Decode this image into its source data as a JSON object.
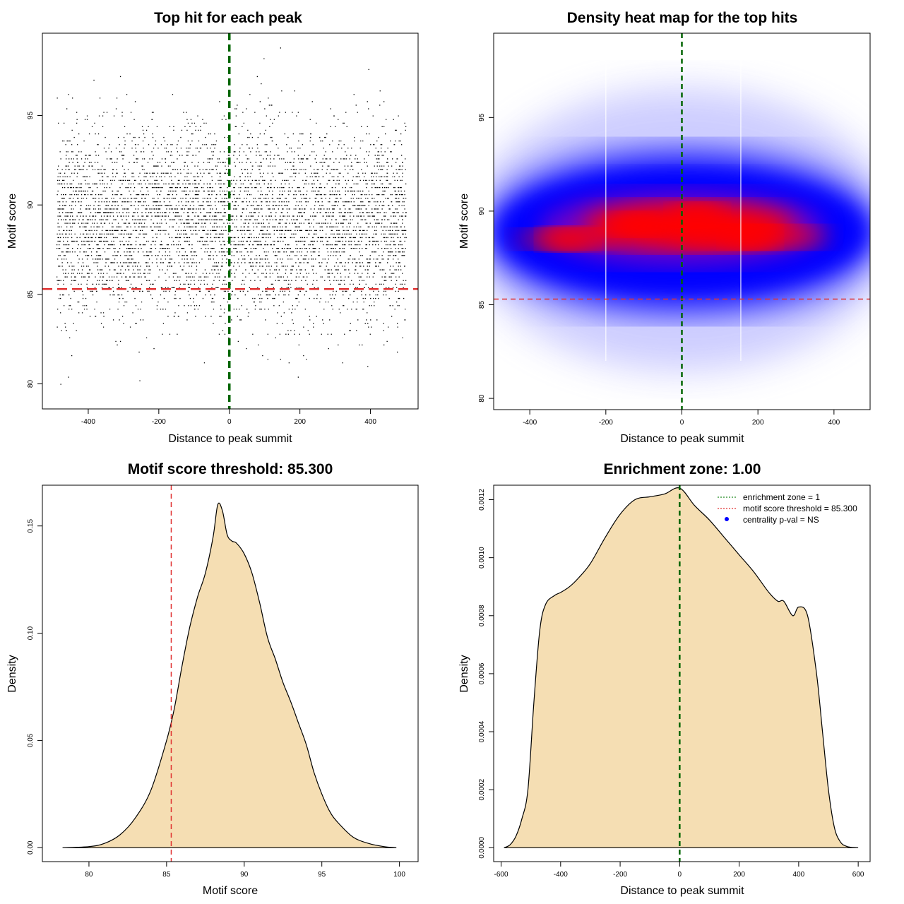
{
  "chart_data": [
    {
      "id": "scatter",
      "type": "scatter",
      "title": "Top hit for each peak",
      "xlabel": "Distance to peak summit",
      "ylabel": "Motif score",
      "xlim": [
        -530,
        535
      ],
      "ylim": [
        78.6,
        99.6
      ],
      "xticks": [
        -400,
        -200,
        0,
        200,
        400
      ],
      "yticks": [
        80,
        85,
        90,
        95
      ],
      "x_range_points": [
        -490,
        500
      ],
      "y_distribution": {
        "mean": 89.0,
        "sd": 2.6,
        "min": 79.4,
        "max": 98.8
      },
      "n_points": 9000,
      "vline": {
        "x": 0,
        "color": "#006400"
      },
      "hline": {
        "y": 85.3,
        "color": "#e03030"
      }
    },
    {
      "id": "heatmap",
      "type": "heatmap",
      "title": "Density heat map for the top hits",
      "xlabel": "Distance to peak summit",
      "ylabel": "Motif score",
      "xlim": [
        -495,
        495
      ],
      "ylim": [
        79.4,
        99.5
      ],
      "xticks": [
        -400,
        -200,
        0,
        200,
        400
      ],
      "yticks": [
        80,
        85,
        90,
        95
      ],
      "color_scale": [
        "#ffffff",
        "#0000ff",
        "#ff0000"
      ],
      "hotspots": [
        {
          "x": 40,
          "y": 89.8
        },
        {
          "x": -120,
          "y": 89.3
        },
        {
          "x": 180,
          "y": 88.6
        },
        {
          "x": -300,
          "y": 88.5
        }
      ],
      "white_vlines_x": [
        -200,
        155
      ],
      "vline": {
        "x": 0,
        "color": "#006400"
      },
      "hline": {
        "y": 85.3,
        "color": "#e03030"
      }
    },
    {
      "id": "score-density",
      "type": "area",
      "title": "Motif score threshold: 85.300",
      "xlabel": "Motif score",
      "ylabel": "Density",
      "xlim": [
        77.0,
        101.2
      ],
      "ylim": [
        -0.0065,
        0.169
      ],
      "xticks": [
        80,
        85,
        90,
        95,
        100
      ],
      "yticks": [
        0.0,
        0.05,
        0.1,
        0.15
      ],
      "ytick_labels": [
        "0.00",
        "0.05",
        "0.10",
        "0.15"
      ],
      "fill_color": "#f5deb3",
      "x": [
        78.3,
        80,
        81,
        82,
        83,
        84,
        85,
        85.5,
        86,
        86.5,
        87,
        87.5,
        88,
        88.3,
        88.6,
        88.9,
        89.2,
        89.5,
        90,
        90.5,
        91,
        91.5,
        92,
        92.5,
        93,
        93.5,
        94,
        94.5,
        95,
        95.5,
        96,
        97,
        98,
        99,
        99.8
      ],
      "y": [
        0.0,
        0.0005,
        0.002,
        0.006,
        0.014,
        0.027,
        0.05,
        0.065,
        0.085,
        0.103,
        0.117,
        0.128,
        0.145,
        0.16,
        0.157,
        0.146,
        0.143,
        0.142,
        0.137,
        0.128,
        0.114,
        0.098,
        0.088,
        0.077,
        0.068,
        0.058,
        0.048,
        0.035,
        0.025,
        0.017,
        0.012,
        0.005,
        0.002,
        0.0005,
        0.0
      ],
      "vline": {
        "x": 85.3,
        "color": "#e03030"
      }
    },
    {
      "id": "distance-density",
      "type": "area",
      "title": "Enrichment zone: 1.00",
      "xlabel": "Distance to peak summit",
      "ylabel": "Density",
      "xlim": [
        -625,
        640
      ],
      "ylim": [
        -4.8e-05,
        0.00125
      ],
      "xticks": [
        -600,
        -400,
        -200,
        0,
        200,
        400,
        600
      ],
      "yticks": [
        0.0,
        0.0002,
        0.0004,
        0.0006,
        0.0008,
        0.001,
        0.0012
      ],
      "ytick_labels": [
        "0.0000",
        "0.0002",
        "0.0004",
        "0.0006",
        "0.0008",
        "0.0010",
        "0.0012"
      ],
      "fill_color": "#f5deb3",
      "x": [
        -590,
        -570,
        -550,
        -530,
        -510,
        -490,
        -470,
        -450,
        -420,
        -400,
        -370,
        -340,
        -300,
        -250,
        -200,
        -150,
        -100,
        -50,
        0,
        50,
        100,
        150,
        200,
        250,
        300,
        330,
        350,
        380,
        400,
        430,
        460,
        480,
        500,
        520,
        540,
        560,
        580,
        600
      ],
      "y": [
        0.0,
        1e-05,
        4e-05,
        0.0001,
        0.0002,
        0.0005,
        0.00075,
        0.00084,
        0.00087,
        0.00088,
        0.0009,
        0.00093,
        0.00098,
        0.00107,
        0.00115,
        0.0012,
        0.00121,
        0.00122,
        0.00124,
        0.00118,
        0.00113,
        0.00107,
        0.00101,
        0.00095,
        0.00088,
        0.00085,
        0.00085,
        0.0008,
        0.00083,
        0.0008,
        0.0006,
        0.0004,
        0.0002,
        7e-05,
        2e-05,
        5e-06,
        1e-06,
        0.0
      ],
      "vline": {
        "x": 0,
        "color": "#006400"
      },
      "legend": {
        "position": "top-right",
        "entries": [
          {
            "label": "enrichment zone = 1",
            "color": "#228b22",
            "style": "dotted-line"
          },
          {
            "label": "motif score threshold = 85.300",
            "color": "#e03030",
            "style": "dotted-line"
          },
          {
            "label": "centrality p-val = NS",
            "color": "#0000ff",
            "style": "point"
          }
        ]
      }
    }
  ]
}
